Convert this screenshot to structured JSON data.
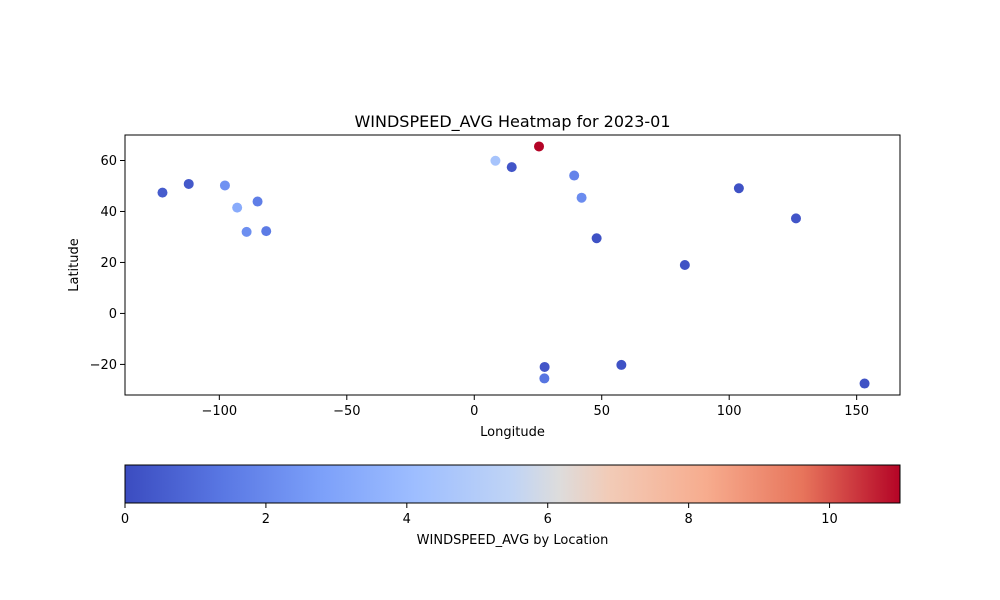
{
  "chart_data": {
    "type": "scatter",
    "title": "WINDSPEED_AVG Heatmap for 2023-01",
    "xlabel": "Longitude",
    "ylabel": "Latitude",
    "xlim": [
      -137,
      167
    ],
    "ylim": [
      -32,
      70
    ],
    "xticks": [
      -100,
      -50,
      0,
      50,
      100,
      150
    ],
    "xtick_labels": [
      "−100",
      "−50",
      "0",
      "50",
      "100",
      "150"
    ],
    "yticks": [
      -20,
      0,
      20,
      40,
      60
    ],
    "ytick_labels": [
      "−20",
      "0",
      "20",
      "40",
      "60"
    ],
    "grid": false,
    "colormap": "coolwarm",
    "color_range": [
      0,
      11
    ],
    "colorbar": {
      "label": "WINDSPEED_AVG by Location",
      "ticks": [
        0,
        2,
        4,
        6,
        8,
        10
      ],
      "tick_labels": [
        "0",
        "2",
        "4",
        "6",
        "8",
        "10"
      ],
      "orientation": "horizontal",
      "placement": "bottom"
    },
    "points": [
      {
        "lon": -122.3,
        "lat": 47.4,
        "value": 0.5
      },
      {
        "lon": -112.0,
        "lat": 50.8,
        "value": 0.4
      },
      {
        "lon": -97.8,
        "lat": 50.2,
        "value": 2.3
      },
      {
        "lon": -93.0,
        "lat": 41.5,
        "value": 3.3
      },
      {
        "lon": -89.3,
        "lat": 32.0,
        "value": 2.2
      },
      {
        "lon": -85.0,
        "lat": 43.9,
        "value": 1.6
      },
      {
        "lon": -81.6,
        "lat": 32.3,
        "value": 1.5
      },
      {
        "lon": 8.3,
        "lat": 59.9,
        "value": 4.5
      },
      {
        "lon": 14.7,
        "lat": 57.4,
        "value": 0.3
      },
      {
        "lon": 25.4,
        "lat": 65.5,
        "value": 11.0
      },
      {
        "lon": 39.2,
        "lat": 54.1,
        "value": 1.8
      },
      {
        "lon": 42.1,
        "lat": 45.4,
        "value": 2.1
      },
      {
        "lon": 48.0,
        "lat": 29.5,
        "value": 0.2
      },
      {
        "lon": 27.6,
        "lat": -21.0,
        "value": 0.3
      },
      {
        "lon": 27.5,
        "lat": -25.5,
        "value": 1.3
      },
      {
        "lon": 57.7,
        "lat": -20.2,
        "value": 0.2
      },
      {
        "lon": 82.6,
        "lat": 19.0,
        "value": 0.2
      },
      {
        "lon": 103.8,
        "lat": 49.1,
        "value": 0.2
      },
      {
        "lon": 126.2,
        "lat": 37.3,
        "value": 0.3
      },
      {
        "lon": 153.1,
        "lat": -27.5,
        "value": 0.2
      }
    ]
  }
}
